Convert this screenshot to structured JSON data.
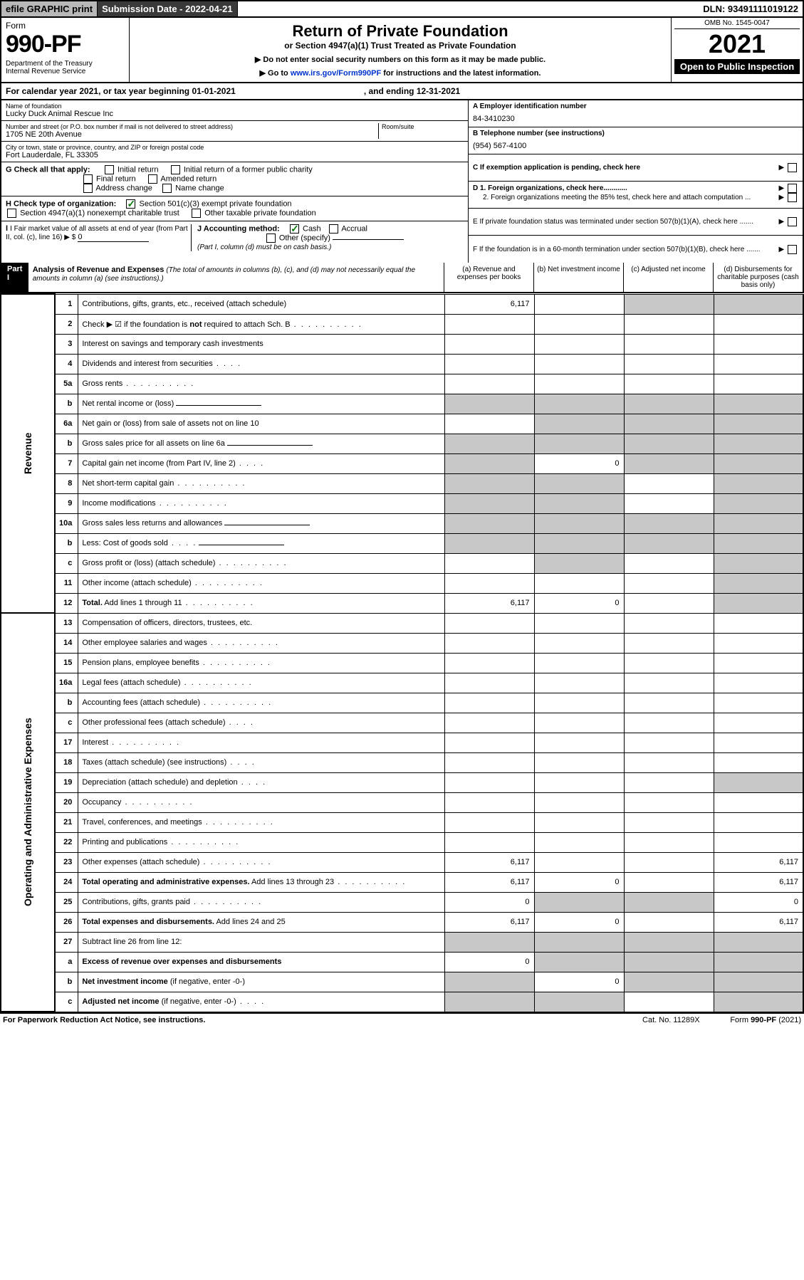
{
  "topbar": {
    "efile": "efile GRAPHIC print",
    "submission": "Submission Date - 2022-04-21",
    "dln": "DLN: 93491111019122"
  },
  "header": {
    "form_label": "Form",
    "form_num": "990-PF",
    "dept": "Department of the Treasury\nInternal Revenue Service",
    "title": "Return of Private Foundation",
    "subtitle": "or Section 4947(a)(1) Trust Treated as Private Foundation",
    "note1": "▶ Do not enter social security numbers on this form as it may be made public.",
    "note2": "▶ Go to www.irs.gov/Form990PF for instructions and the latest information.",
    "omb": "OMB No. 1545-0047",
    "year": "2021",
    "open": "Open to Public Inspection"
  },
  "calendar": {
    "text": "For calendar year 2021, or tax year beginning 01-01-2021",
    "ending": ", and ending 12-31-2021"
  },
  "entity": {
    "name_lbl": "Name of foundation",
    "name": "Lucky Duck Animal Rescue Inc",
    "addr_lbl": "Number and street (or P.O. box number if mail is not delivered to street address)",
    "addr": "1705 NE 20th Avenue",
    "room_lbl": "Room/suite",
    "city_lbl": "City or town, state or province, country, and ZIP or foreign postal code",
    "city": "Fort Lauderdale, FL  33305",
    "ein_lbl": "A Employer identification number",
    "ein": "84-3410230",
    "tel_lbl": "B Telephone number (see instructions)",
    "tel": "(954) 567-4100",
    "c_lbl": "C If exemption application is pending, check here",
    "d1": "D 1. Foreign organizations, check here............",
    "d2": "2. Foreign organizations meeting the 85% test, check here and attach computation ...",
    "e_lbl": "E  If private foundation status was terminated under section 507(b)(1)(A), check here .......",
    "f_lbl": "F  If the foundation is in a 60-month termination under section 507(b)(1)(B), check here .......",
    "g_lbl": "G Check all that apply:",
    "g_opts": [
      "Initial return",
      "Initial return of a former public charity",
      "Final return",
      "Amended return",
      "Address change",
      "Name change"
    ],
    "h_lbl": "H Check type of organization:",
    "h1": "Section 501(c)(3) exempt private foundation",
    "h2": "Section 4947(a)(1) nonexempt charitable trust",
    "h3": "Other taxable private foundation",
    "i_lbl": "I Fair market value of all assets at end of year (from Part II, col. (c), line 16) ▶ $",
    "i_val": "0",
    "j_lbl": "J Accounting method:",
    "j_cash": "Cash",
    "j_accrual": "Accrual",
    "j_other": "Other (specify)",
    "j_note": "(Part I, column (d) must be on cash basis.)"
  },
  "part1": {
    "label": "Part I",
    "title": "Analysis of Revenue and Expenses",
    "title_note": "(The total of amounts in columns (b), (c), and (d) may not necessarily equal the amounts in column (a) (see instructions).)",
    "col_a": "(a)  Revenue and expenses per books",
    "col_b": "(b)  Net investment income",
    "col_c": "(c)  Adjusted net income",
    "col_d": "(d)  Disbursements for charitable purposes (cash basis only)",
    "side_rev": "Revenue",
    "side_exp": "Operating and Administrative Expenses"
  },
  "rows": [
    {
      "n": "1",
      "d": "Contributions, gifts, grants, etc., received (attach schedule)",
      "a": "6,117",
      "grey_c": true,
      "grey_d": true
    },
    {
      "n": "2",
      "d": "Check ▶ ☑ if the foundation is <b>not</b> required to attach Sch. B",
      "dots": true,
      "nocols": true
    },
    {
      "n": "3",
      "d": "Interest on savings and temporary cash investments"
    },
    {
      "n": "4",
      "d": "Dividends and interest from securities",
      "dots": "s"
    },
    {
      "n": "5a",
      "d": "Gross rents",
      "dots": true
    },
    {
      "n": "b",
      "d": "Net rental income or (loss)",
      "inline": true,
      "grey_all": true
    },
    {
      "n": "6a",
      "d": "Net gain or (loss) from sale of assets not on line 10",
      "grey_b": true,
      "grey_c": true,
      "grey_d": true
    },
    {
      "n": "b",
      "d": "Gross sales price for all assets on line 6a",
      "inline": true,
      "grey_all": true
    },
    {
      "n": "7",
      "d": "Capital gain net income (from Part IV, line 2)",
      "dots": "s",
      "grey_a": true,
      "b": "0",
      "grey_c": true,
      "grey_d": true
    },
    {
      "n": "8",
      "d": "Net short-term capital gain",
      "dots": true,
      "grey_a": true,
      "grey_b": true,
      "grey_d": true
    },
    {
      "n": "9",
      "d": "Income modifications",
      "dots": true,
      "grey_a": true,
      "grey_b": true,
      "grey_d": true
    },
    {
      "n": "10a",
      "d": "Gross sales less returns and allowances",
      "inline": true,
      "grey_all": true
    },
    {
      "n": "b",
      "d": "Less: Cost of goods sold",
      "dots": "s",
      "inline": true,
      "grey_all": true
    },
    {
      "n": "c",
      "d": "Gross profit or (loss) (attach schedule)",
      "dots": true,
      "grey_b": true,
      "grey_d": true
    },
    {
      "n": "11",
      "d": "Other income (attach schedule)",
      "dots": true,
      "grey_d": true
    },
    {
      "n": "12",
      "d": "<b>Total.</b> Add lines 1 through 11",
      "dots": true,
      "a": "6,117",
      "b": "0",
      "grey_d": true
    },
    {
      "n": "13",
      "d": "Compensation of officers, directors, trustees, etc."
    },
    {
      "n": "14",
      "d": "Other employee salaries and wages",
      "dots": true
    },
    {
      "n": "15",
      "d": "Pension plans, employee benefits",
      "dots": true
    },
    {
      "n": "16a",
      "d": "Legal fees (attach schedule)",
      "dots": true
    },
    {
      "n": "b",
      "d": "Accounting fees (attach schedule)",
      "dots": true
    },
    {
      "n": "c",
      "d": "Other professional fees (attach schedule)",
      "dots": "s"
    },
    {
      "n": "17",
      "d": "Interest",
      "dots": true
    },
    {
      "n": "18",
      "d": "Taxes (attach schedule) (see instructions)",
      "dots": "s"
    },
    {
      "n": "19",
      "d": "Depreciation (attach schedule) and depletion",
      "dots": "s",
      "grey_d": true
    },
    {
      "n": "20",
      "d": "Occupancy",
      "dots": true
    },
    {
      "n": "21",
      "d": "Travel, conferences, and meetings",
      "dots": true
    },
    {
      "n": "22",
      "d": "Printing and publications",
      "dots": true
    },
    {
      "n": "23",
      "d": "Other expenses (attach schedule)",
      "dots": true,
      "a": "6,117",
      "d_v": "6,117"
    },
    {
      "n": "24",
      "d": "<b>Total operating and administrative expenses.</b> Add lines 13 through 23",
      "dots": true,
      "a": "6,117",
      "b": "0",
      "d_v": "6,117"
    },
    {
      "n": "25",
      "d": "Contributions, gifts, grants paid",
      "dots": true,
      "a": "0",
      "grey_b": true,
      "grey_c": true,
      "d_v": "0"
    },
    {
      "n": "26",
      "d": "<b>Total expenses and disbursements.</b> Add lines 24 and 25",
      "a": "6,117",
      "b": "0",
      "d_v": "6,117"
    },
    {
      "n": "27",
      "d": "Subtract line 26 from line 12:",
      "grey_all": true
    },
    {
      "n": "a",
      "d": "<b>Excess of revenue over expenses and disbursements</b>",
      "a": "0",
      "grey_b": true,
      "grey_c": true,
      "grey_d": true
    },
    {
      "n": "b",
      "d": "<b>Net investment income</b> (if negative, enter -0-)",
      "grey_a": true,
      "b": "0",
      "grey_c": true,
      "grey_d": true
    },
    {
      "n": "c",
      "d": "<b>Adjusted net income</b> (if negative, enter -0-)",
      "dots": "s",
      "grey_a": true,
      "grey_b": true,
      "grey_d": true
    }
  ],
  "footer": {
    "left": "For Paperwork Reduction Act Notice, see instructions.",
    "cat": "Cat. No. 11289X",
    "form": "Form 990-PF (2021)"
  }
}
